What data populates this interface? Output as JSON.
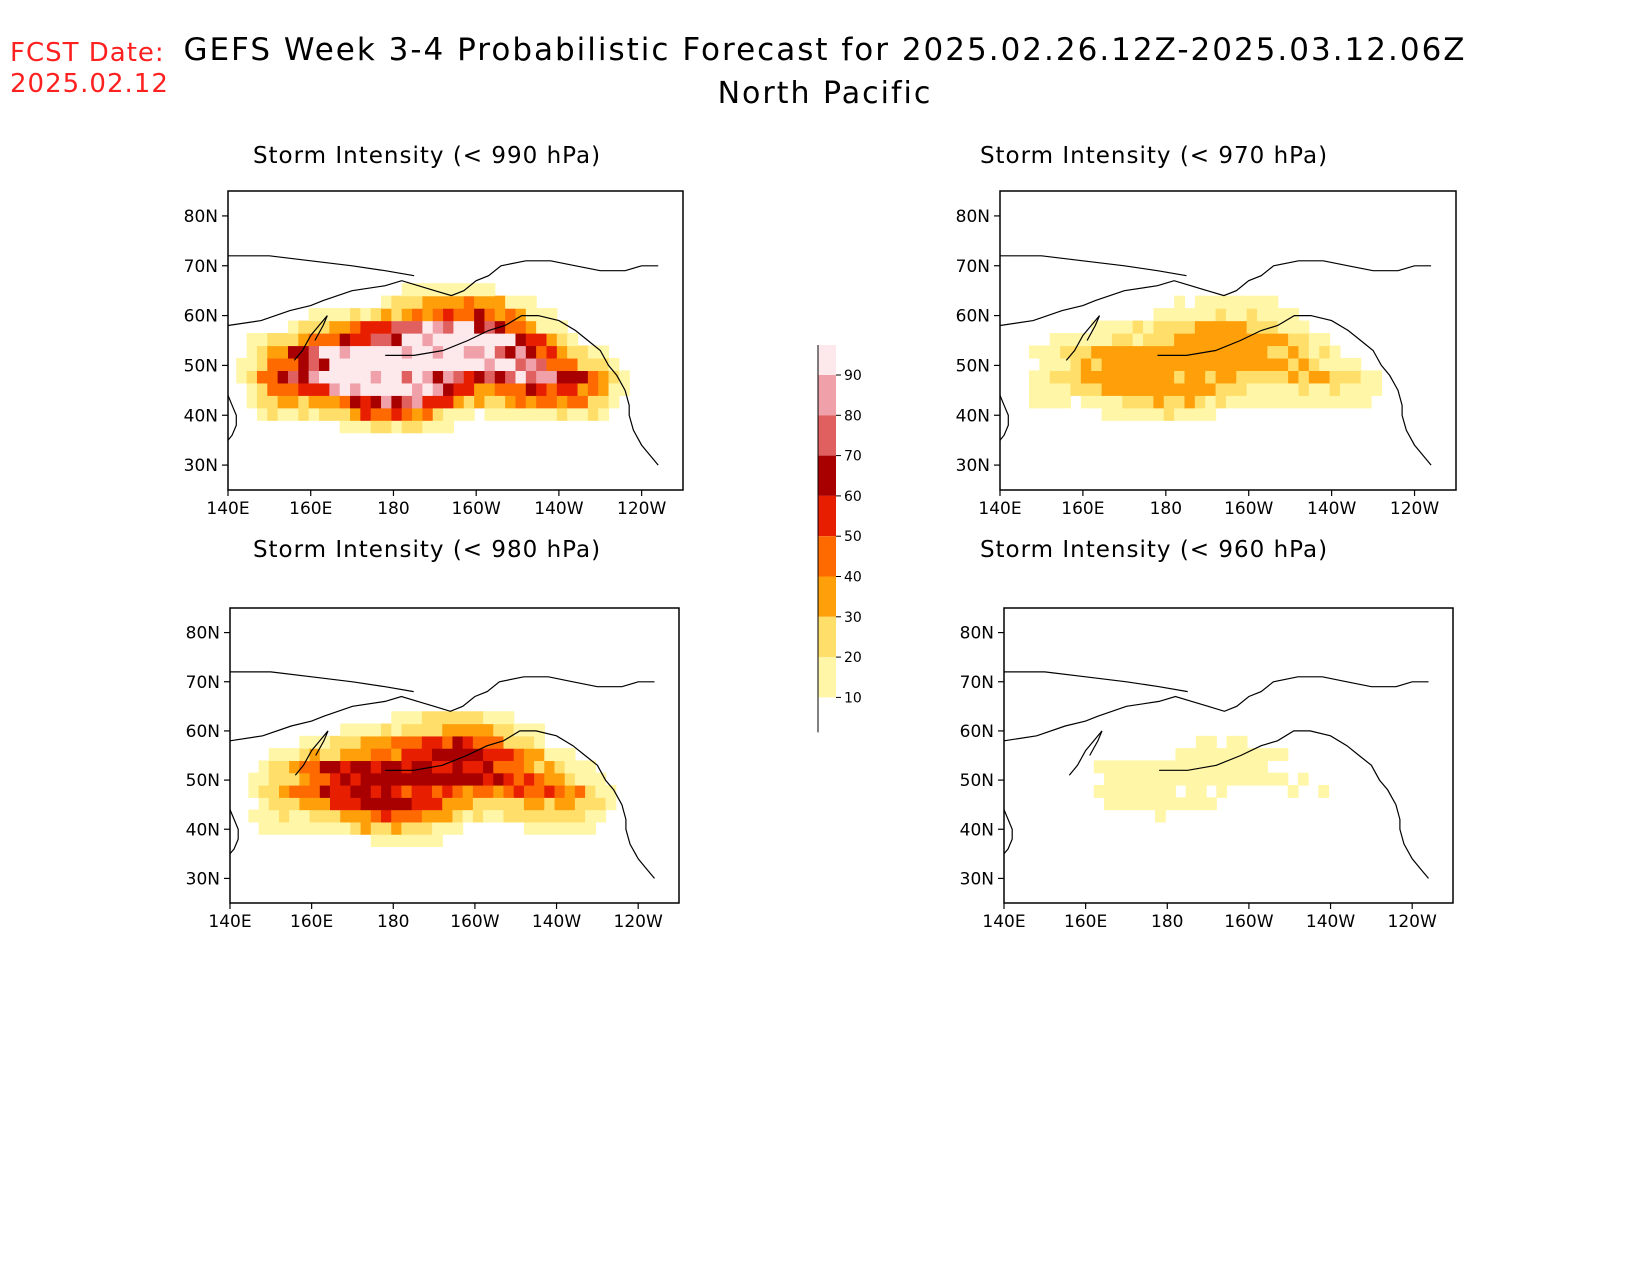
{
  "header": {
    "fcst_label": "FCST Date:",
    "fcst_date": "2025.02.12",
    "title": "GEFS Week 3-4 Probabilistic Forecast for 2025.02.26.12Z-2025.03.12.06Z",
    "subtitle": "North Pacific"
  },
  "colors": {
    "bins": [
      "#fff6a8",
      "#ffdf6a",
      "#ffa00a",
      "#ff6a00",
      "#e81e00",
      "#a80000",
      "#e06060",
      "#f0a0a8",
      "#fde8ec"
    ],
    "coast": "#000000"
  },
  "chart_data": [
    {
      "type": "heatmap",
      "title": "Storm Intensity (< 990 hPa)",
      "x_ticks": [
        "140E",
        "160E",
        "180",
        "160W",
        "140W",
        "120W"
      ],
      "y_ticks": [
        "80N",
        "70N",
        "60N",
        "50N",
        "40N",
        "30N"
      ],
      "lon_range": [
        140,
        250
      ],
      "lat_range": [
        25,
        85
      ],
      "overall_level": 65
    },
    {
      "type": "heatmap",
      "title": "Storm Intensity (< 970 hPa)",
      "x_ticks": [
        "140E",
        "160E",
        "180",
        "160W",
        "140W",
        "120W"
      ],
      "y_ticks": [
        "80N",
        "70N",
        "60N",
        "50N",
        "40N",
        "30N"
      ],
      "lon_range": [
        140,
        250
      ],
      "lat_range": [
        25,
        85
      ],
      "overall_level": 25
    },
    {
      "type": "heatmap",
      "title": "Storm Intensity (< 980 hPa)",
      "x_ticks": [
        "140E",
        "160E",
        "180",
        "160W",
        "140W",
        "120W"
      ],
      "y_ticks": [
        "80N",
        "70N",
        "60N",
        "50N",
        "40N",
        "30N"
      ],
      "lon_range": [
        140,
        250
      ],
      "lat_range": [
        25,
        85
      ],
      "overall_level": 40
    },
    {
      "type": "heatmap",
      "title": "Storm Intensity (< 960 hPa)",
      "x_ticks": [
        "140E",
        "160E",
        "180",
        "160W",
        "140W",
        "120W"
      ],
      "y_ticks": [
        "80N",
        "70N",
        "60N",
        "50N",
        "40N",
        "30N"
      ],
      "lon_range": [
        140,
        250
      ],
      "lat_range": [
        25,
        85
      ],
      "overall_level": 8
    }
  ],
  "colorbar": {
    "levels": [
      "10",
      "20",
      "30",
      "40",
      "50",
      "60",
      "70",
      "80",
      "90"
    ]
  }
}
